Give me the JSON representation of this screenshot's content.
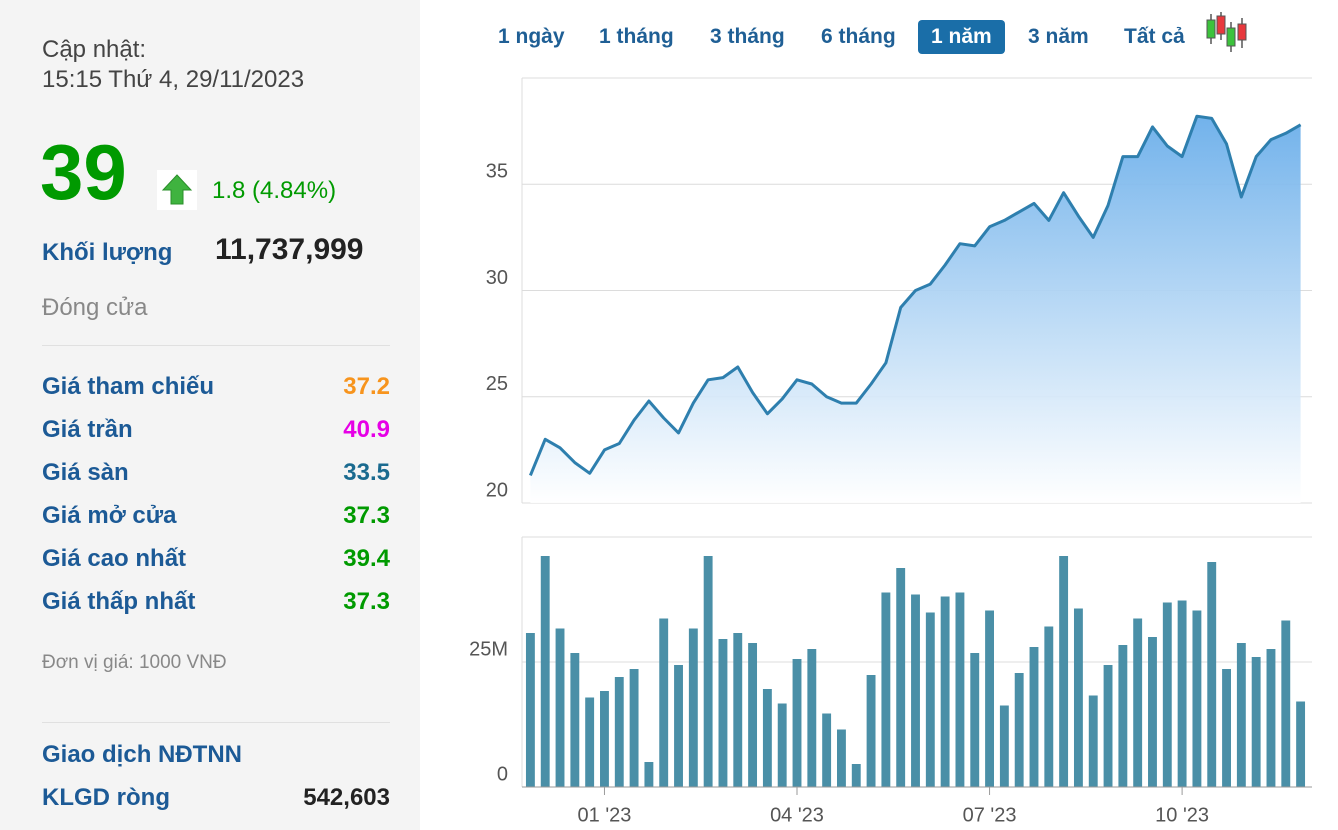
{
  "update": {
    "label": "Cập nhật:",
    "time": "15:15 Thứ 4, 29/11/2023"
  },
  "price": {
    "value": "39",
    "change": "1.8 (4.84%)"
  },
  "volume": {
    "label": "Khối lượng",
    "value": "11,737,999"
  },
  "status": "Đóng cửa",
  "stats": [
    {
      "label": "Giá tham chiếu",
      "value": "37.2",
      "color": "#f7941d"
    },
    {
      "label": "Giá trần",
      "value": "40.9",
      "color": "#e600e6"
    },
    {
      "label": "Giá sàn",
      "value": "33.5",
      "color": "#1a6a8f"
    },
    {
      "label": "Giá mở cửa",
      "value": "37.3",
      "color": "#009a00"
    },
    {
      "label": "Giá cao nhất",
      "value": "39.4",
      "color": "#009a00"
    },
    {
      "label": "Giá thấp nhất",
      "value": "37.3",
      "color": "#009a00"
    }
  ],
  "unit": "Đơn vị giá: 1000 VNĐ",
  "foreign": {
    "title": "Giao dịch NĐTNN",
    "label": "KLGD ròng",
    "value": "542,603"
  },
  "tabs": {
    "items": [
      "1 ngày",
      "1 tháng",
      "3 tháng",
      "6 tháng",
      "1 năm",
      "3 năm",
      "Tất cả"
    ],
    "active": 4
  },
  "chart_data": [
    {
      "type": "area",
      "color": "#2e7fae",
      "fill": "#6aaeea",
      "values": [
        21.3,
        23.0,
        22.6,
        21.9,
        21.4,
        22.5,
        22.8,
        23.9,
        24.8,
        24.0,
        23.3,
        24.7,
        25.8,
        25.9,
        26.4,
        25.2,
        24.2,
        24.9,
        25.8,
        25.6,
        25.0,
        24.7,
        24.7,
        25.6,
        26.6,
        29.2,
        30.0,
        30.3,
        31.2,
        32.2,
        32.1,
        33.0,
        33.3,
        33.7,
        34.1,
        33.3,
        34.6,
        33.5,
        32.5,
        34.0,
        36.3,
        36.3,
        37.7,
        36.8,
        36.3,
        38.2,
        38.1,
        36.9,
        34.4,
        36.3,
        37.1,
        37.4,
        37.8
      ],
      "ylim": [
        20,
        40
      ],
      "yticks": [
        20,
        25,
        30,
        35
      ],
      "grid": true
    },
    {
      "type": "bar",
      "color": "#4a8fa7",
      "categories": [
        null,
        null,
        null,
        null,
        null,
        "01 '23",
        null,
        null,
        null,
        null,
        null,
        null,
        null,
        null,
        null,
        null,
        null,
        null,
        "04 '23",
        null,
        null,
        null,
        null,
        null,
        null,
        null,
        null,
        null,
        null,
        null,
        null,
        "07 '23",
        null,
        null,
        null,
        null,
        null,
        null,
        null,
        null,
        null,
        null,
        null,
        null,
        "10 '23",
        null,
        null,
        null,
        null,
        null,
        null,
        null,
        null
      ],
      "values": [
        30800000,
        46200000,
        31700000,
        26800000,
        17900000,
        19200000,
        22000000,
        23600000,
        5000000,
        33700000,
        24400000,
        31700000,
        46200000,
        29600000,
        30800000,
        28800000,
        19600000,
        16700000,
        25600000,
        27600000,
        14700000,
        11500000,
        4600000,
        22400000,
        38900000,
        43800000,
        38500000,
        34900000,
        38100000,
        38900000,
        26800000,
        35300000,
        16300000,
        22800000,
        28000000,
        32100000,
        46200000,
        35700000,
        18300000,
        24400000,
        28400000,
        33700000,
        30000000,
        36900000,
        37300000,
        35300000,
        45000000,
        23600000,
        28800000,
        26000000,
        27600000,
        33300000,
        17100000
      ],
      "ylim": [
        0,
        50000000
      ],
      "yticks": [
        0,
        {
          "value": 25000000,
          "label": "25M"
        }
      ],
      "grid": true
    }
  ]
}
